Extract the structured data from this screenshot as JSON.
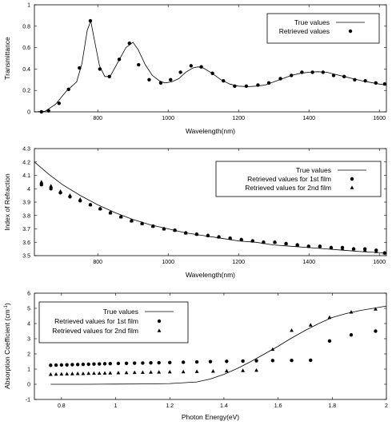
{
  "chart_data": [
    {
      "type": "line",
      "xlabel": "Wavelength(nm)",
      "ylabel": "Transmittance",
      "xlim": [
        620,
        1620
      ],
      "ylim": [
        0,
        1
      ],
      "xticks": [
        800,
        1000,
        1200,
        1400,
        1600
      ],
      "yticks": [
        0,
        0.2,
        0.4,
        0.6,
        0.8,
        1
      ],
      "legend_position": "top-right",
      "series": [
        {
          "name": "True values",
          "style": "line",
          "points": [
            [
              620,
              0
            ],
            [
              650,
              0.005
            ],
            [
              680,
              0.07
            ],
            [
              710,
              0.19
            ],
            [
              740,
              0.28
            ],
            [
              755,
              0.45
            ],
            [
              770,
              0.76
            ],
            [
              780,
              0.85
            ],
            [
              790,
              0.68
            ],
            [
              805,
              0.43
            ],
            [
              820,
              0.33
            ],
            [
              835,
              0.33
            ],
            [
              860,
              0.48
            ],
            [
              880,
              0.6
            ],
            [
              900,
              0.65
            ],
            [
              915,
              0.58
            ],
            [
              935,
              0.44
            ],
            [
              955,
              0.34
            ],
            [
              975,
              0.29
            ],
            [
              990,
              0.27
            ],
            [
              1010,
              0.28
            ],
            [
              1030,
              0.31
            ],
            [
              1050,
              0.37
            ],
            [
              1070,
              0.41
            ],
            [
              1085,
              0.42
            ],
            [
              1100,
              0.41
            ],
            [
              1125,
              0.36
            ],
            [
              1150,
              0.3
            ],
            [
              1175,
              0.26
            ],
            [
              1200,
              0.24
            ],
            [
              1225,
              0.235
            ],
            [
              1250,
              0.24
            ],
            [
              1275,
              0.25
            ],
            [
              1300,
              0.28
            ],
            [
              1325,
              0.31
            ],
            [
              1350,
              0.34
            ],
            [
              1375,
              0.36
            ],
            [
              1400,
              0.37
            ],
            [
              1425,
              0.375
            ],
            [
              1450,
              0.37
            ],
            [
              1475,
              0.35
            ],
            [
              1500,
              0.33
            ],
            [
              1525,
              0.31
            ],
            [
              1550,
              0.29
            ],
            [
              1575,
              0.275
            ],
            [
              1600,
              0.26
            ],
            [
              1620,
              0.25
            ]
          ]
        },
        {
          "name": "Retrieved values",
          "style": "circle",
          "points": [
            [
              640,
              0
            ],
            [
              660,
              0.01
            ],
            [
              690,
              0.08
            ],
            [
              717,
              0.21
            ],
            [
              748,
              0.41
            ],
            [
              779,
              0.85
            ],
            [
              806,
              0.4
            ],
            [
              833,
              0.33
            ],
            [
              861,
              0.49
            ],
            [
              890,
              0.64
            ],
            [
              916,
              0.44
            ],
            [
              946,
              0.3
            ],
            [
              979,
              0.27
            ],
            [
              1007,
              0.3
            ],
            [
              1035,
              0.37
            ],
            [
              1065,
              0.43
            ],
            [
              1094,
              0.42
            ],
            [
              1126,
              0.36
            ],
            [
              1157,
              0.29
            ],
            [
              1189,
              0.24
            ],
            [
              1222,
              0.24
            ],
            [
              1255,
              0.25
            ],
            [
              1286,
              0.27
            ],
            [
              1319,
              0.31
            ],
            [
              1350,
              0.34
            ],
            [
              1380,
              0.37
            ],
            [
              1410,
              0.37
            ],
            [
              1440,
              0.37
            ],
            [
              1470,
              0.34
            ],
            [
              1500,
              0.33
            ],
            [
              1530,
              0.3
            ],
            [
              1560,
              0.29
            ],
            [
              1590,
              0.27
            ],
            [
              1615,
              0.26
            ]
          ]
        }
      ]
    },
    {
      "type": "line",
      "xlabel": "Wavelength(nm)",
      "ylabel": "Index of Refraction",
      "xlim": [
        620,
        1620
      ],
      "ylim": [
        3.5,
        4.3
      ],
      "xticks": [
        800,
        1000,
        1200,
        1400,
        1600
      ],
      "yticks": [
        3.5,
        3.6,
        3.7,
        3.8,
        3.9,
        4,
        4.1,
        4.2,
        4.3
      ],
      "legend_position": "top-right",
      "series": [
        {
          "name": "True values",
          "style": "line",
          "points": [
            [
              620,
              4.2
            ],
            [
              660,
              4.11
            ],
            [
              700,
              4.03
            ],
            [
              750,
              3.95
            ],
            [
              800,
              3.88
            ],
            [
              850,
              3.82
            ],
            [
              900,
              3.77
            ],
            [
              950,
              3.73
            ],
            [
              1000,
              3.7
            ],
            [
              1050,
              3.67
            ],
            [
              1100,
              3.65
            ],
            [
              1150,
              3.63
            ],
            [
              1200,
              3.61
            ],
            [
              1250,
              3.6
            ],
            [
              1300,
              3.58
            ],
            [
              1350,
              3.57
            ],
            [
              1400,
              3.56
            ],
            [
              1450,
              3.55
            ],
            [
              1500,
              3.54
            ],
            [
              1550,
              3.53
            ],
            [
              1620,
              3.52
            ]
          ]
        },
        {
          "name": "Retrieved values for 1st film",
          "style": "circle",
          "points": [
            [
              640,
              4.03
            ],
            [
              667,
              4
            ],
            [
              694,
              3.97
            ],
            [
              721,
              3.94
            ],
            [
              750,
              3.91
            ],
            [
              779,
              3.88
            ],
            [
              807,
              3.85
            ],
            [
              836,
              3.82
            ],
            [
              866,
              3.79
            ],
            [
              896,
              3.76
            ],
            [
              926,
              3.74
            ],
            [
              957,
              3.72
            ],
            [
              988,
              3.7
            ],
            [
              1019,
              3.69
            ],
            [
              1050,
              3.67
            ],
            [
              1081,
              3.66
            ],
            [
              1113,
              3.65
            ],
            [
              1144,
              3.64
            ],
            [
              1176,
              3.63
            ],
            [
              1208,
              3.62
            ],
            [
              1240,
              3.61
            ],
            [
              1271,
              3.6
            ],
            [
              1303,
              3.6
            ],
            [
              1335,
              3.59
            ],
            [
              1367,
              3.58
            ],
            [
              1399,
              3.57
            ],
            [
              1431,
              3.57
            ],
            [
              1463,
              3.56
            ],
            [
              1495,
              3.56
            ],
            [
              1527,
              3.55
            ],
            [
              1559,
              3.55
            ],
            [
              1591,
              3.54
            ],
            [
              1615,
              3.52
            ]
          ]
        },
        {
          "name": "Retrieved values for 2nd film",
          "style": "triangle",
          "points": [
            [
              640,
              4.05
            ],
            [
              667,
              4.02
            ],
            [
              694,
              3.98
            ],
            [
              721,
              3.95
            ],
            [
              750,
              3.92
            ],
            [
              779,
              3.88
            ],
            [
              807,
              3.85
            ],
            [
              836,
              3.82
            ],
            [
              866,
              3.79
            ],
            [
              896,
              3.76
            ],
            [
              926,
              3.74
            ],
            [
              957,
              3.72
            ],
            [
              988,
              3.7
            ],
            [
              1019,
              3.69
            ],
            [
              1050,
              3.67
            ],
            [
              1081,
              3.66
            ],
            [
              1113,
              3.65
            ],
            [
              1144,
              3.64
            ],
            [
              1176,
              3.63
            ],
            [
              1208,
              3.62
            ],
            [
              1240,
              3.61
            ],
            [
              1271,
              3.6
            ],
            [
              1303,
              3.6
            ],
            [
              1335,
              3.59
            ],
            [
              1367,
              3.58
            ],
            [
              1399,
              3.57
            ],
            [
              1431,
              3.57
            ],
            [
              1463,
              3.56
            ],
            [
              1495,
              3.55
            ],
            [
              1527,
              3.55
            ],
            [
              1559,
              3.54
            ],
            [
              1591,
              3.53
            ],
            [
              1615,
              3.52
            ]
          ]
        }
      ]
    },
    {
      "type": "line",
      "xlabel": "Photon Energy(eV)",
      "ylabel": "Absorption Coefficient (cm",
      "ylabel_sup": "-1",
      "ylabel_suffix": ")",
      "xlim": [
        0.7,
        2
      ],
      "ylim": [
        -1,
        6
      ],
      "xticks": [
        0.8,
        1,
        1.2,
        1.4,
        1.6,
        1.8,
        2
      ],
      "yticks": [
        -1,
        0,
        1,
        2,
        3,
        4,
        5,
        6
      ],
      "legend_position": "top-left",
      "series": [
        {
          "name": "True values",
          "style": "line",
          "points": [
            [
              0.76,
              0
            ],
            [
              0.9,
              0
            ],
            [
              1,
              0.01
            ],
            [
              1.1,
              0.02
            ],
            [
              1.2,
              0.05
            ],
            [
              1.3,
              0.15
            ],
            [
              1.35,
              0.35
            ],
            [
              1.4,
              0.65
            ],
            [
              1.45,
              1.05
            ],
            [
              1.5,
              1.5
            ],
            [
              1.55,
              2
            ],
            [
              1.6,
              2.5
            ],
            [
              1.65,
              3.05
            ],
            [
              1.7,
              3.55
            ],
            [
              1.75,
              4
            ],
            [
              1.8,
              4.4
            ],
            [
              1.85,
              4.65
            ],
            [
              1.9,
              4.85
            ],
            [
              1.95,
              5
            ],
            [
              2,
              5.15
            ]
          ]
        },
        {
          "name": "Retrieved values for 1st film",
          "style": "circle",
          "points": [
            [
              0.76,
              1.25
            ],
            [
              0.78,
              1.26
            ],
            [
              0.8,
              1.27
            ],
            [
              0.82,
              1.28
            ],
            [
              0.84,
              1.29
            ],
            [
              0.86,
              1.3
            ],
            [
              0.88,
              1.31
            ],
            [
              0.9,
              1.32
            ],
            [
              0.92,
              1.33
            ],
            [
              0.94,
              1.34
            ],
            [
              0.96,
              1.35
            ],
            [
              0.98,
              1.36
            ],
            [
              1.01,
              1.37
            ],
            [
              1.04,
              1.38
            ],
            [
              1.07,
              1.39
            ],
            [
              1.1,
              1.4
            ],
            [
              1.13,
              1.41
            ],
            [
              1.16,
              1.42
            ],
            [
              1.2,
              1.43
            ],
            [
              1.25,
              1.45
            ],
            [
              1.3,
              1.47
            ],
            [
              1.35,
              1.49
            ],
            [
              1.41,
              1.51
            ],
            [
              1.47,
              1.53
            ],
            [
              1.52,
              1.55
            ],
            [
              1.58,
              1.56
            ],
            [
              1.65,
              1.57
            ],
            [
              1.72,
              1.58
            ],
            [
              1.79,
              2.85
            ],
            [
              1.87,
              3.25
            ],
            [
              1.96,
              3.5
            ]
          ]
        },
        {
          "name": "Retrieved values for 2nd film",
          "style": "triangle",
          "points": [
            [
              0.76,
              0.65
            ],
            [
              0.78,
              0.66
            ],
            [
              0.8,
              0.67
            ],
            [
              0.82,
              0.68
            ],
            [
              0.84,
              0.69
            ],
            [
              0.86,
              0.7
            ],
            [
              0.88,
              0.7
            ],
            [
              0.9,
              0.71
            ],
            [
              0.92,
              0.72
            ],
            [
              0.94,
              0.72
            ],
            [
              0.96,
              0.73
            ],
            [
              0.98,
              0.74
            ],
            [
              1.01,
              0.75
            ],
            [
              1.04,
              0.76
            ],
            [
              1.07,
              0.77
            ],
            [
              1.1,
              0.78
            ],
            [
              1.13,
              0.79
            ],
            [
              1.16,
              0.8
            ],
            [
              1.2,
              0.81
            ],
            [
              1.25,
              0.82
            ],
            [
              1.3,
              0.84
            ],
            [
              1.36,
              0.86
            ],
            [
              1.41,
              0.88
            ],
            [
              1.47,
              0.9
            ],
            [
              1.52,
              0.92
            ],
            [
              1.58,
              2.3
            ],
            [
              1.65,
              3.55
            ],
            [
              1.72,
              3.9
            ],
            [
              1.79,
              4.4
            ],
            [
              1.87,
              4.75
            ],
            [
              1.96,
              4.95
            ]
          ]
        }
      ]
    }
  ]
}
